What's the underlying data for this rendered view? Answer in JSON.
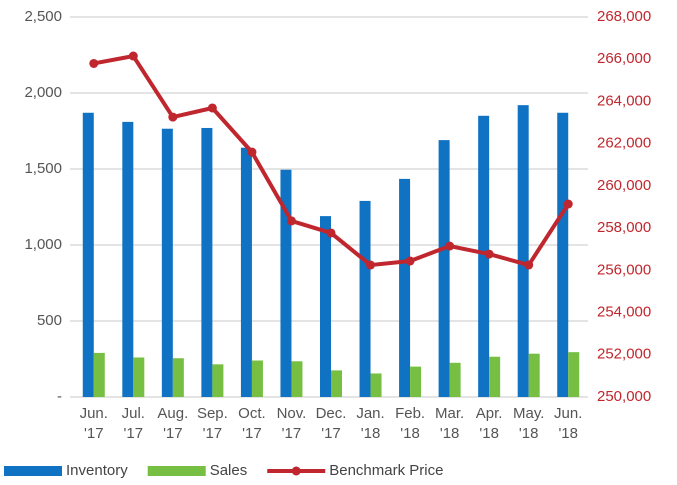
{
  "chart_data": {
    "type": "bar-line",
    "categories": [
      "Jun. '17",
      "Jul. '17",
      "Aug. '17",
      "Sep. '17",
      "Oct. '17",
      "Nov. '17",
      "Dec. '17",
      "Jan. '18",
      "Feb. '18",
      "Mar. '18",
      "Apr. '18",
      "May. '18",
      "Jun. '18"
    ],
    "series": [
      {
        "name": "Inventory",
        "color": "#0f72c2",
        "type": "bar",
        "values": [
          1870,
          1810,
          1765,
          1770,
          1640,
          1495,
          1190,
          1290,
          1435,
          1690,
          1850,
          1920,
          1870
        ]
      },
      {
        "name": "Sales",
        "color": "#76bf42",
        "type": "bar",
        "values": [
          290,
          260,
          255,
          215,
          240,
          235,
          175,
          155,
          200,
          225,
          265,
          285,
          295
        ]
      },
      {
        "name": "Benchmark Price",
        "color": "#c0262d",
        "type": "line",
        "axis": "y2",
        "values": [
          265800,
          266150,
          263260,
          263690,
          261600,
          258340,
          257770,
          256250,
          256440,
          257150,
          256770,
          256250,
          259140
        ]
      }
    ],
    "ylim": [
      0,
      2500
    ],
    "yticks": [
      {
        "value": 0,
        "label": "-"
      },
      500,
      {
        "value": 1000,
        "label": "1,000"
      },
      {
        "value": 1500,
        "label": "1,500"
      },
      {
        "value": 2000,
        "label": "2,000"
      },
      {
        "value": 2500,
        "label": "2,500"
      }
    ],
    "y2lim": [
      250000,
      268000
    ],
    "y2ticks": [
      {
        "value": 250000,
        "label": "250,000"
      },
      {
        "value": 252000,
        "label": "252,000"
      },
      {
        "value": 254000,
        "label": "254,000"
      },
      {
        "value": 256000,
        "label": "256,000"
      },
      {
        "value": 258000,
        "label": "258,000"
      },
      {
        "value": 260000,
        "label": "260,000"
      },
      {
        "value": 262000,
        "label": "262,000"
      },
      {
        "value": 264000,
        "label": "264,000"
      },
      {
        "value": 266000,
        "label": "266,000"
      },
      {
        "value": 268000,
        "label": "268,000"
      }
    ],
    "y2color": "#c0262d",
    "grid": true,
    "legend": "bottom"
  }
}
